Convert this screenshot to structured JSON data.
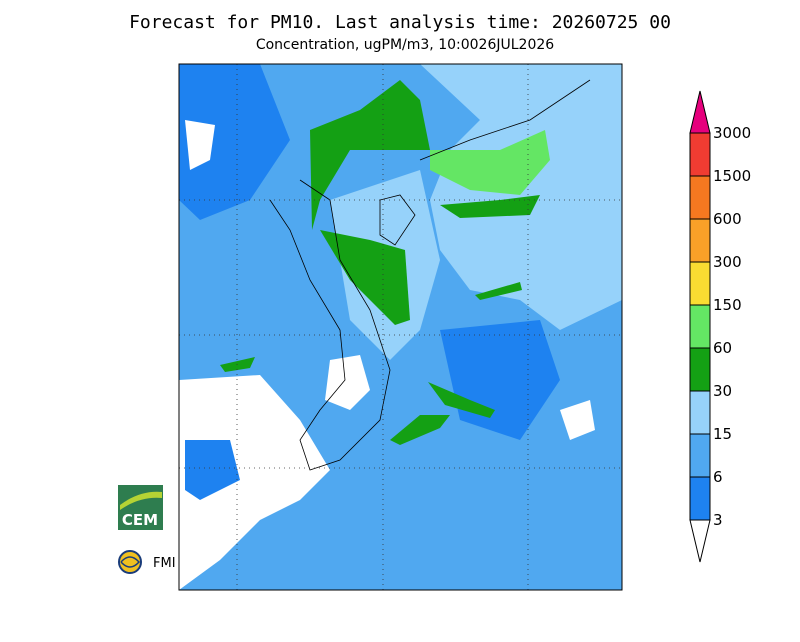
{
  "header": {
    "title": "Forecast for PM10. Last analysis time: 20260725 00",
    "subtitle": "Concentration, ugPM/m3, 10:0026JUL2026"
  },
  "legend": {
    "levels": [
      3,
      6,
      15,
      30,
      60,
      150,
      300,
      600,
      1500,
      3000
    ],
    "colors": [
      "#ffffff",
      "#1e82f0",
      "#50a8f0",
      "#96d2fa",
      "#14a014",
      "#64e664",
      "#fadc32",
      "#faa028",
      "#f57820",
      "#f03c32",
      "#e6007d"
    ]
  },
  "logos": {
    "cem": "CEM",
    "fmi": "FMI"
  }
}
